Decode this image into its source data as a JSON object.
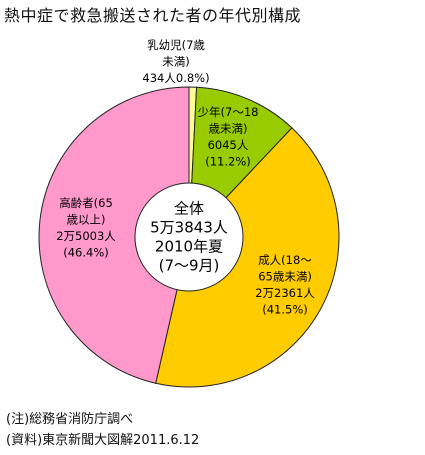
{
  "title": "熱中症で救急搬送された者の年代別構成",
  "chart_data": {
    "type": "pie",
    "center_text": [
      "全体",
      "5万3843人",
      "2010年夏",
      "(7〜9月)"
    ],
    "slices": [
      {
        "lines": [
          "乳幼児(7歳",
          "未満)",
          "434人0.8%)"
        ],
        "value": 434,
        "percent": 0.8,
        "color": "#ffff99"
      },
      {
        "lines": [
          "少年(7〜18",
          "歳未満)",
          "6045人",
          "(11.2%)"
        ],
        "value": 6045,
        "percent": 11.2,
        "color": "#99cc00"
      },
      {
        "lines": [
          "成人(18〜",
          "65歳未満)",
          "2万2361人",
          "(41.5%)"
        ],
        "value": 22361,
        "percent": 41.5,
        "color": "#ffcc00"
      },
      {
        "lines": [
          "高齢者(65",
          "歳以上)",
          "2万5003人",
          "(46.4%)"
        ],
        "value": 25003,
        "percent": 46.4,
        "color": "#ff99cc"
      }
    ]
  },
  "footnotes": {
    "note": "(注)総務省消防庁調べ",
    "source": "(資料)東京新聞大図解2011.6.12"
  }
}
